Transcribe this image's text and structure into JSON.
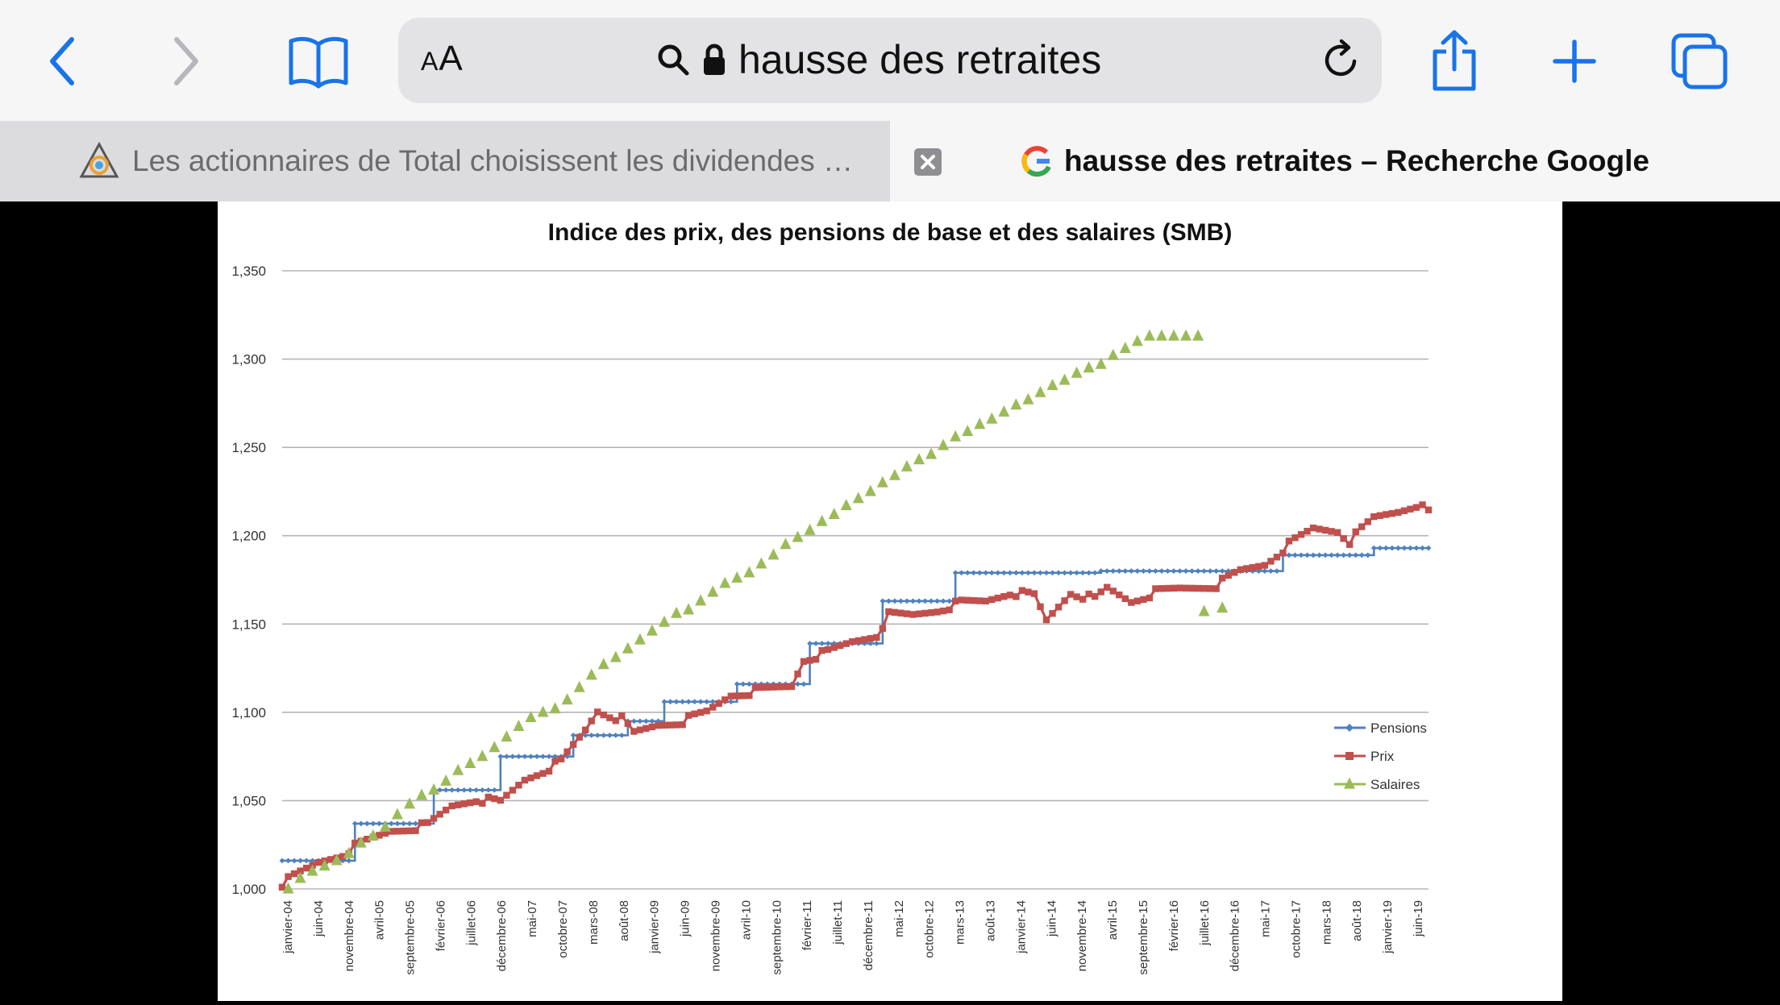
{
  "browser": {
    "address": {
      "text_size_label": "AA",
      "url": "hausse des retraites"
    },
    "tabs": [
      {
        "title": "Les actionnaires de Total choisissent les dividendes plutôt que le climat",
        "active": false
      },
      {
        "title": "hausse des retraites – Recherche Google",
        "active": true
      }
    ],
    "icons": [
      "back-icon",
      "forward-icon",
      "bookmarks-icon",
      "search-icon",
      "lock-icon",
      "reload-icon",
      "share-icon",
      "new-tab-icon",
      "tabs-icon",
      "close-icon",
      "google-icon"
    ],
    "accent_color": "#1a73e8"
  },
  "chart_data": {
    "type": "line",
    "title": "Indice des prix, des pensions de base et des salaires (SMB)",
    "ylim": [
      1.0,
      1.35
    ],
    "yticks": [
      "1,350",
      "1,300",
      "1,250",
      "1,200",
      "1,150",
      "1,100",
      "1,050",
      "1,000"
    ],
    "x_tick_labels": [
      "janvier-04",
      "juin-04",
      "novembre-04",
      "avril-05",
      "septembre-05",
      "février-06",
      "juillet-06",
      "décembre-06",
      "mai-07",
      "octobre-07",
      "mars-08",
      "août-08",
      "janvier-09",
      "juin-09",
      "novembre-09",
      "avril-10",
      "septembre-10",
      "février-11",
      "juillet-11",
      "décembre-11",
      "mai-12",
      "octobre-12",
      "mars-13",
      "août-13",
      "janvier-14",
      "juin-14",
      "novembre-14",
      "avril-15",
      "septembre-15",
      "février-16",
      "juillet-16",
      "décembre-16",
      "mai-17",
      "octobre-17",
      "mars-18",
      "août-18",
      "janvier-19",
      "juin-19"
    ],
    "x_range": [
      0,
      189
    ],
    "grid": true,
    "legend_position": "right",
    "series": [
      {
        "name": "Pensions",
        "color": "#4f81bd",
        "marker": "diamond",
        "steps": [
          [
            0,
            1.016
          ],
          [
            12,
            1.037
          ],
          [
            25,
            1.056
          ],
          [
            36,
            1.075
          ],
          [
            48,
            1.087
          ],
          [
            57,
            1.095
          ],
          [
            63,
            1.106
          ],
          [
            75,
            1.116
          ],
          [
            87,
            1.139
          ],
          [
            99,
            1.163
          ],
          [
            111,
            1.179
          ],
          [
            135,
            1.18
          ],
          [
            165,
            1.189
          ],
          [
            180,
            1.193
          ],
          [
            189,
            1.193
          ]
        ]
      },
      {
        "name": "Prix",
        "color": "#c0504d",
        "marker": "square",
        "points": [
          [
            0,
            1.003
          ],
          [
            6,
            1.015
          ],
          [
            10,
            1.02
          ],
          [
            12,
            1.024
          ],
          [
            18,
            1.033
          ],
          [
            24,
            1.036
          ],
          [
            28,
            1.047
          ],
          [
            32,
            1.051
          ],
          [
            36,
            1.049
          ],
          [
            40,
            1.062
          ],
          [
            46,
            1.072
          ],
          [
            50,
            1.09
          ],
          [
            52,
            1.101
          ],
          [
            56,
            1.096
          ],
          [
            58,
            1.088
          ],
          [
            62,
            1.093
          ],
          [
            66,
            1.095
          ],
          [
            70,
            1.1
          ],
          [
            74,
            1.11
          ],
          [
            78,
            1.112
          ],
          [
            84,
            1.115
          ],
          [
            86,
            1.13
          ],
          [
            90,
            1.134
          ],
          [
            94,
            1.14
          ],
          [
            98,
            1.144
          ],
          [
            100,
            1.155
          ],
          [
            104,
            1.155
          ],
          [
            108,
            1.158
          ],
          [
            112,
            1.162
          ],
          [
            116,
            1.163
          ],
          [
            120,
            1.168
          ],
          [
            124,
            1.166
          ],
          [
            126,
            1.152
          ],
          [
            130,
            1.168
          ],
          [
            134,
            1.164
          ],
          [
            136,
            1.17
          ],
          [
            140,
            1.163
          ],
          [
            144,
            1.168
          ],
          [
            148,
            1.17
          ],
          [
            154,
            1.172
          ],
          [
            158,
            1.18
          ],
          [
            162,
            1.184
          ],
          [
            166,
            1.195
          ],
          [
            170,
            1.204
          ],
          [
            174,
            1.203
          ],
          [
            176,
            1.197
          ],
          [
            180,
            1.21
          ],
          [
            184,
            1.214
          ],
          [
            187,
            1.218
          ],
          [
            189,
            1.213
          ]
        ]
      },
      {
        "name": "Salaires",
        "color": "#9bbb59",
        "marker": "triangle",
        "points": [
          [
            1,
            1.0
          ],
          [
            3,
            1.006
          ],
          [
            5,
            1.01
          ],
          [
            7,
            1.013
          ],
          [
            9,
            1.016
          ],
          [
            11,
            1.02
          ],
          [
            13,
            1.026
          ],
          [
            15,
            1.03
          ],
          [
            17,
            1.035
          ],
          [
            19,
            1.042
          ],
          [
            21,
            1.048
          ],
          [
            23,
            1.053
          ],
          [
            25,
            1.056
          ],
          [
            27,
            1.061
          ],
          [
            29,
            1.067
          ],
          [
            31,
            1.071
          ],
          [
            33,
            1.075
          ],
          [
            35,
            1.08
          ],
          [
            37,
            1.086
          ],
          [
            39,
            1.092
          ],
          [
            41,
            1.097
          ],
          [
            43,
            1.1
          ],
          [
            45,
            1.102
          ],
          [
            47,
            1.107
          ],
          [
            49,
            1.114
          ],
          [
            51,
            1.121
          ],
          [
            53,
            1.127
          ],
          [
            55,
            1.131
          ],
          [
            57,
            1.136
          ],
          [
            59,
            1.141
          ],
          [
            61,
            1.146
          ],
          [
            63,
            1.151
          ],
          [
            65,
            1.156
          ],
          [
            67,
            1.158
          ],
          [
            69,
            1.163
          ],
          [
            71,
            1.168
          ],
          [
            73,
            1.173
          ],
          [
            75,
            1.176
          ],
          [
            77,
            1.179
          ],
          [
            79,
            1.184
          ],
          [
            81,
            1.189
          ],
          [
            83,
            1.195
          ],
          [
            85,
            1.199
          ],
          [
            87,
            1.203
          ],
          [
            89,
            1.208
          ],
          [
            91,
            1.212
          ],
          [
            93,
            1.217
          ],
          [
            95,
            1.221
          ],
          [
            97,
            1.225
          ],
          [
            99,
            1.23
          ],
          [
            101,
            1.234
          ],
          [
            103,
            1.239
          ],
          [
            105,
            1.243
          ],
          [
            107,
            1.246
          ],
          [
            109,
            1.251
          ],
          [
            111,
            1.256
          ],
          [
            113,
            1.259
          ],
          [
            115,
            1.263
          ],
          [
            117,
            1.266
          ],
          [
            119,
            1.27
          ],
          [
            121,
            1.274
          ],
          [
            123,
            1.277
          ],
          [
            125,
            1.281
          ],
          [
            127,
            1.285
          ],
          [
            129,
            1.288
          ],
          [
            131,
            1.292
          ],
          [
            133,
            1.295
          ],
          [
            135,
            1.297
          ],
          [
            137,
            1.302
          ],
          [
            139,
            1.306
          ],
          [
            141,
            1.31
          ],
          [
            143,
            1.313
          ],
          [
            145,
            1.313
          ],
          [
            147,
            1.313
          ],
          [
            149,
            1.313
          ],
          [
            151,
            1.313
          ],
          [
            152,
            1.157
          ],
          [
            155,
            1.159
          ]
        ]
      }
    ]
  }
}
